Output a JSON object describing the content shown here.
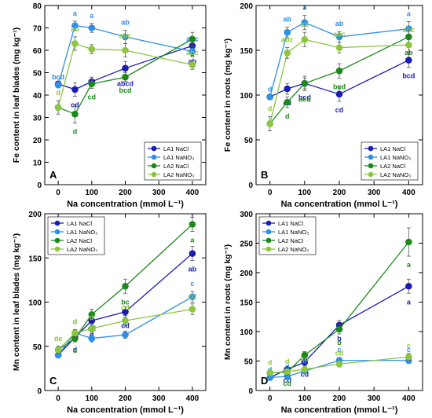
{
  "chart_data": [
    {
      "panel": "A",
      "type": "line",
      "ylabel": "Fe content in leaf blades (mg kg⁻¹)",
      "xlabel": "Na concentration (mmol L⁻¹)",
      "x": [
        0,
        50,
        100,
        200,
        400
      ],
      "xticks": [
        0,
        100,
        200,
        300,
        400
      ],
      "ylim": [
        0,
        80
      ],
      "yticks": [
        0,
        10,
        20,
        30,
        40,
        50,
        60,
        70,
        80
      ],
      "legend": "bottom-right",
      "series": [
        {
          "name": "LA1 NaCl",
          "color": "#1c1cb4",
          "values": [
            45,
            42.5,
            46,
            52,
            62
          ],
          "err": [
            0,
            3,
            2,
            3,
            3
          ],
          "letters": [
            "",
            "cd",
            "",
            "abcd",
            "ab"
          ]
        },
        {
          "name": "LA1 NaNO₃",
          "color": "#2f8fe6",
          "values": [
            44.5,
            71,
            70,
            66,
            59.5
          ],
          "err": [
            0,
            2,
            2,
            3,
            2
          ],
          "letters": [
            "bcd",
            "a",
            "a",
            "ab",
            "abc"
          ]
        },
        {
          "name": "LA2 NaCl",
          "color": "#1b8a1b",
          "values": [
            34.5,
            31.5,
            45,
            48,
            65
          ],
          "err": [
            0,
            4,
            2,
            2,
            3
          ],
          "letters": [
            "",
            "d",
            "cd",
            "bcd",
            "a"
          ]
        },
        {
          "name": "LA2 NaNO₃",
          "color": "#8cc63f",
          "values": [
            34.5,
            63,
            60.5,
            60,
            53.5
          ],
          "err": [
            3,
            3,
            2,
            3,
            2
          ],
          "letters": [
            "d",
            "ab",
            "",
            "abc",
            "abc"
          ]
        }
      ]
    },
    {
      "panel": "B",
      "type": "line",
      "ylabel": "Fe content in roots (mg kg⁻¹)",
      "xlabel": "Na concentration (mmol L⁻¹)",
      "x": [
        0,
        50,
        100,
        200,
        400
      ],
      "xticks": [
        0,
        100,
        200,
        300,
        400
      ],
      "ylim": [
        0,
        200
      ],
      "yticks": [
        0,
        50,
        100,
        150,
        200
      ],
      "legend": "bottom-right",
      "series": [
        {
          "name": "LA1 NaCl",
          "color": "#1c1cb4",
          "values": [
            98,
            107,
            113,
            101,
            139
          ],
          "err": [
            0,
            6,
            6,
            8,
            8
          ],
          "letters": [
            "",
            "cd",
            "bcd",
            "cd",
            "bcd"
          ]
        },
        {
          "name": "LA1 NaNO₃",
          "color": "#2f8fe6",
          "values": [
            98,
            170,
            181,
            165,
            174
          ],
          "err": [
            0,
            6,
            8,
            6,
            8
          ],
          "letters": [
            "d",
            "ab",
            "a",
            "ab",
            "a"
          ]
        },
        {
          "name": "LA2 NaCl",
          "color": "#1b8a1b",
          "values": [
            68,
            92,
            113,
            127,
            165
          ],
          "err": [
            0,
            6,
            8,
            8,
            8
          ],
          "letters": [
            "",
            "d",
            "bcd",
            "bcd",
            "ab"
          ]
        },
        {
          "name": "LA2 NaNO₃",
          "color": "#8cc63f",
          "values": [
            68,
            147,
            162,
            153,
            156
          ],
          "err": [
            8,
            6,
            8,
            6,
            8
          ],
          "letters": [
            "d",
            "abc",
            "ab",
            "abc",
            "abc"
          ]
        }
      ]
    },
    {
      "panel": "C",
      "type": "line",
      "ylabel": "Mn content in leaf blades (mg kg⁻¹)",
      "xlabel": "Na concentration (mmol L⁻¹)",
      "x": [
        0,
        50,
        100,
        200,
        400
      ],
      "xticks": [
        0,
        100,
        200,
        300,
        400
      ],
      "ylim": [
        0,
        200
      ],
      "yticks": [
        0,
        50,
        100,
        150,
        200
      ],
      "legend": "top-left",
      "series": [
        {
          "name": "LA1 NaCl",
          "color": "#1c1cb4",
          "values": [
            40,
            60,
            79,
            89,
            155
          ],
          "err": [
            0,
            4,
            6,
            6,
            8
          ],
          "letters": [
            "",
            "d",
            "d",
            "cd",
            "ab"
          ]
        },
        {
          "name": "LA1 NaNO₃",
          "color": "#2f8fe6",
          "values": [
            40,
            65,
            59,
            63,
            106
          ],
          "err": [
            0,
            4,
            4,
            4,
            6
          ],
          "letters": [
            "e",
            "d",
            "d",
            "d",
            "c"
          ]
        },
        {
          "name": "LA2 NaCl",
          "color": "#1b8a1b",
          "values": [
            46,
            59,
            86,
            118,
            188
          ],
          "err": [
            0,
            4,
            6,
            8,
            8
          ],
          "letters": [
            "",
            "d",
            "cd",
            "bc",
            "a"
          ]
        },
        {
          "name": "LA2 NaNO₃",
          "color": "#8cc63f",
          "values": [
            46,
            65,
            70,
            79,
            92
          ],
          "err": [
            4,
            4,
            4,
            6,
            6
          ],
          "letters": [
            "de",
            "d",
            "d",
            "cd",
            "cd"
          ]
        }
      ]
    },
    {
      "panel": "D",
      "type": "line",
      "ylabel": "Mn content in roots (mg kg⁻¹)",
      "xlabel": "Na concentration (mmol L⁻¹)",
      "x": [
        0,
        50,
        100,
        200,
        400
      ],
      "xticks": [
        0,
        100,
        200,
        300,
        400
      ],
      "ylim": [
        0,
        300
      ],
      "yticks": [
        0,
        50,
        100,
        150,
        200,
        250,
        300
      ],
      "legend": "top-left",
      "series": [
        {
          "name": "LA1 NaCl",
          "color": "#1c1cb4",
          "values": [
            22,
            36,
            48,
            111,
            177
          ],
          "err": [
            0,
            4,
            6,
            8,
            12
          ],
          "letters": [
            "",
            "cd",
            "cd",
            "b",
            "a"
          ]
        },
        {
          "name": "LA1 NaNO₃",
          "color": "#2f8fe6",
          "values": [
            22,
            24,
            33,
            51,
            51
          ],
          "err": [
            0,
            3,
            4,
            5,
            5
          ],
          "letters": [
            "d",
            "d",
            "d",
            "c",
            "c"
          ]
        },
        {
          "name": "LA2 NaCl",
          "color": "#1b8a1b",
          "values": [
            30,
            31,
            60,
            104,
            252
          ],
          "err": [
            0,
            4,
            6,
            8,
            24
          ],
          "letters": [
            "",
            "cd",
            "c",
            "b",
            "a"
          ]
        },
        {
          "name": "LA2 NaNO₃",
          "color": "#8cc63f",
          "values": [
            30,
            32,
            36,
            45,
            57
          ],
          "err": [
            4,
            4,
            4,
            5,
            6
          ],
          "letters": [
            "d",
            "d",
            "cd",
            "cd",
            "c"
          ]
        }
      ]
    }
  ]
}
